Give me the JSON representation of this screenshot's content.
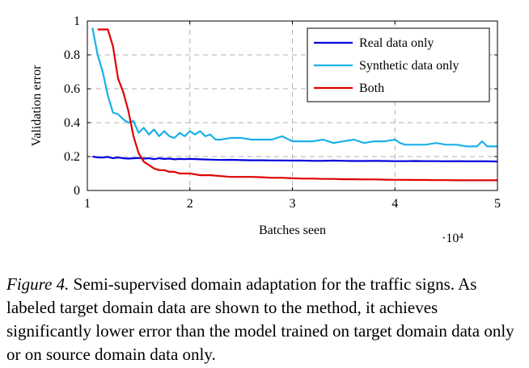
{
  "chart_data": {
    "type": "line",
    "xlabel": "Batches seen",
    "ylabel": "Validation error",
    "x_multiplier_label": "·10⁴",
    "xlim": [
      1,
      5
    ],
    "ylim": [
      0,
      1
    ],
    "xticks": [
      "1",
      "2",
      "3",
      "4",
      "5"
    ],
    "yticks": [
      "0",
      "0.2",
      "0.4",
      "0.6",
      "0.8",
      "1"
    ],
    "xtick_values": [
      1,
      2,
      3,
      4,
      5
    ],
    "ytick_values": [
      0,
      0.2,
      0.4,
      0.6,
      0.8,
      1
    ],
    "grid": true,
    "legend_position": "top-right",
    "series": [
      {
        "name": "Real data only",
        "color": "#0000dd",
        "x": [
          1.05,
          1.1,
          1.15,
          1.2,
          1.25,
          1.3,
          1.35,
          1.4,
          1.45,
          1.5,
          1.55,
          1.6,
          1.65,
          1.7,
          1.75,
          1.8,
          1.85,
          1.9,
          1.95,
          2.0,
          2.1,
          2.2,
          2.3,
          2.4,
          2.5,
          2.6,
          2.7,
          2.8,
          2.9,
          3.0,
          3.1,
          3.2,
          3.3,
          3.4,
          3.5,
          3.6,
          3.7,
          3.8,
          3.9,
          4.0,
          4.1,
          4.2,
          4.3,
          4.4,
          4.5,
          4.6,
          4.7,
          4.8,
          4.9,
          5.0
        ],
        "y": [
          0.2,
          0.195,
          0.195,
          0.198,
          0.19,
          0.195,
          0.19,
          0.188,
          0.19,
          0.192,
          0.188,
          0.19,
          0.185,
          0.19,
          0.186,
          0.188,
          0.184,
          0.186,
          0.185,
          0.186,
          0.184,
          0.182,
          0.18,
          0.181,
          0.179,
          0.178,
          0.178,
          0.177,
          0.177,
          0.176,
          0.176,
          0.175,
          0.175,
          0.176,
          0.175,
          0.174,
          0.174,
          0.175,
          0.174,
          0.173,
          0.173,
          0.174,
          0.173,
          0.173,
          0.172,
          0.173,
          0.172,
          0.172,
          0.172,
          0.171
        ]
      },
      {
        "name": "Synthetic data only",
        "color": "#1ab0e8",
        "x": [
          1.05,
          1.1,
          1.15,
          1.2,
          1.25,
          1.3,
          1.35,
          1.4,
          1.45,
          1.5,
          1.55,
          1.6,
          1.65,
          1.7,
          1.75,
          1.8,
          1.85,
          1.9,
          1.95,
          2.0,
          2.05,
          2.1,
          2.15,
          2.2,
          2.25,
          2.3,
          2.4,
          2.5,
          2.6,
          2.7,
          2.8,
          2.9,
          3.0,
          3.1,
          3.2,
          3.3,
          3.4,
          3.5,
          3.6,
          3.7,
          3.8,
          3.9,
          4.0,
          4.05,
          4.1,
          4.2,
          4.3,
          4.4,
          4.5,
          4.6,
          4.7,
          4.8,
          4.85,
          4.9,
          5.0
        ],
        "y": [
          0.96,
          0.8,
          0.7,
          0.56,
          0.46,
          0.45,
          0.42,
          0.4,
          0.41,
          0.34,
          0.37,
          0.33,
          0.36,
          0.32,
          0.35,
          0.32,
          0.31,
          0.34,
          0.32,
          0.35,
          0.33,
          0.35,
          0.32,
          0.33,
          0.3,
          0.3,
          0.31,
          0.31,
          0.3,
          0.3,
          0.3,
          0.32,
          0.29,
          0.29,
          0.29,
          0.3,
          0.28,
          0.29,
          0.3,
          0.28,
          0.29,
          0.29,
          0.3,
          0.28,
          0.27,
          0.27,
          0.27,
          0.28,
          0.27,
          0.27,
          0.26,
          0.26,
          0.29,
          0.26,
          0.26
        ]
      },
      {
        "name": "Both",
        "color": "#e00000",
        "x": [
          1.1,
          1.15,
          1.2,
          1.25,
          1.3,
          1.35,
          1.4,
          1.45,
          1.5,
          1.55,
          1.6,
          1.65,
          1.7,
          1.75,
          1.8,
          1.85,
          1.9,
          1.95,
          2.0,
          2.1,
          2.2,
          2.3,
          2.4,
          2.5,
          2.6,
          2.7,
          2.8,
          2.9,
          3.0,
          3.1,
          3.2,
          3.3,
          3.4,
          3.5,
          3.6,
          3.7,
          3.8,
          3.9,
          4.0,
          4.1,
          4.2,
          4.3,
          4.4,
          4.5,
          4.6,
          4.7,
          4.8,
          4.9,
          5.0
        ],
        "y": [
          0.95,
          0.95,
          0.95,
          0.85,
          0.66,
          0.58,
          0.47,
          0.32,
          0.22,
          0.17,
          0.15,
          0.13,
          0.12,
          0.12,
          0.11,
          0.11,
          0.1,
          0.1,
          0.1,
          0.09,
          0.09,
          0.085,
          0.08,
          0.08,
          0.08,
          0.078,
          0.075,
          0.075,
          0.072,
          0.07,
          0.07,
          0.068,
          0.068,
          0.066,
          0.066,
          0.065,
          0.065,
          0.064,
          0.063,
          0.063,
          0.062,
          0.062,
          0.061,
          0.061,
          0.06,
          0.06,
          0.06,
          0.06,
          0.06
        ]
      }
    ]
  },
  "caption": {
    "figure_label": "Figure 4.",
    "text": " Semi-supervised domain adaptation for the traffic signs. As labeled target domain data are shown to the method, it achieves significantly lower error than the model trained on target domain data only or on source domain data only."
  }
}
